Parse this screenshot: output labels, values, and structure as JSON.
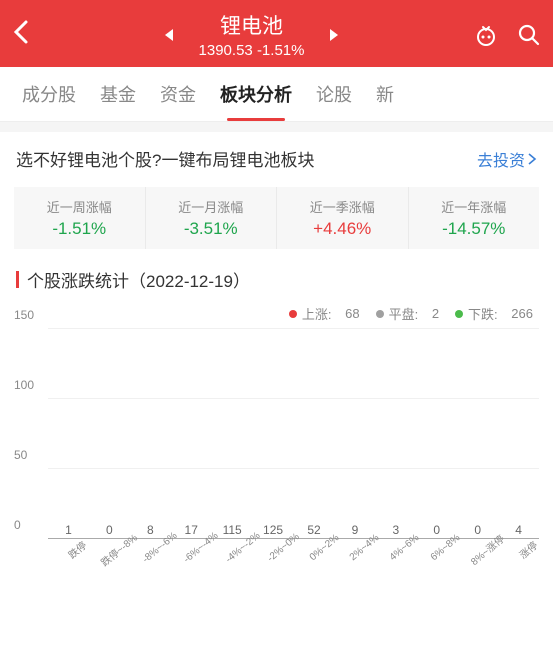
{
  "header": {
    "title": "锂电池",
    "price": "1390.53",
    "change": "-1.51%"
  },
  "tabs": [
    {
      "label": "成分股",
      "active": false
    },
    {
      "label": "基金",
      "active": false
    },
    {
      "label": "资金",
      "active": false
    },
    {
      "label": "板块分析",
      "active": true
    },
    {
      "label": "论股",
      "active": false
    },
    {
      "label": "新",
      "active": false
    }
  ],
  "promo": {
    "text": "选不好锂电池个股?一键布局锂电池板块",
    "link": "去投资"
  },
  "periods": [
    {
      "label": "近一周涨幅",
      "value": "-1.51%",
      "cls": "green"
    },
    {
      "label": "近一月涨幅",
      "value": "-3.51%",
      "cls": "green"
    },
    {
      "label": "近一季涨幅",
      "value": "+4.46%",
      "cls": "red"
    },
    {
      "label": "近一年涨幅",
      "value": "-14.57%",
      "cls": "green"
    }
  ],
  "section": {
    "title": "个股涨跌统计（2022-12-19）"
  },
  "legend": {
    "up_label": "上涨:",
    "up_count": "68",
    "flat_label": "平盘:",
    "flat_count": "2",
    "down_label": "下跌:",
    "down_count": "266"
  },
  "chart": {
    "type": "bar",
    "y_max": 150,
    "y_ticks": [
      0,
      50,
      100,
      150
    ],
    "grid_color": "#f0f0f0",
    "axis_color": "#aaaaaa",
    "label_color": "#888888",
    "label_fontsize": 12,
    "colors": {
      "down": "#4bbb4b",
      "up": "#e83c3c"
    },
    "bars": [
      {
        "label": "跌停",
        "value": 1,
        "color": "#4bbb4b"
      },
      {
        "label": "跌停~-8%",
        "value": 0,
        "color": "#4bbb4b"
      },
      {
        "label": "-8%~-6%",
        "value": 8,
        "color": "#4bbb4b"
      },
      {
        "label": "-6%~-4%",
        "value": 17,
        "color": "#4bbb4b"
      },
      {
        "label": "-4%~-2%",
        "value": 115,
        "color": "#4bbb4b"
      },
      {
        "label": "-2%~0%",
        "value": 125,
        "color": "#4bbb4b"
      },
      {
        "label": "0%~2%",
        "value": 52,
        "color": "#e83c3c"
      },
      {
        "label": "2%~4%",
        "value": 9,
        "color": "#e83c3c"
      },
      {
        "label": "4%~6%",
        "value": 3,
        "color": "#e83c3c"
      },
      {
        "label": "6%~8%",
        "value": 0,
        "color": "#e83c3c"
      },
      {
        "label": "8%~涨停",
        "value": 0,
        "color": "#e83c3c"
      },
      {
        "label": "涨停",
        "value": 4,
        "color": "#e83c3c"
      }
    ]
  }
}
